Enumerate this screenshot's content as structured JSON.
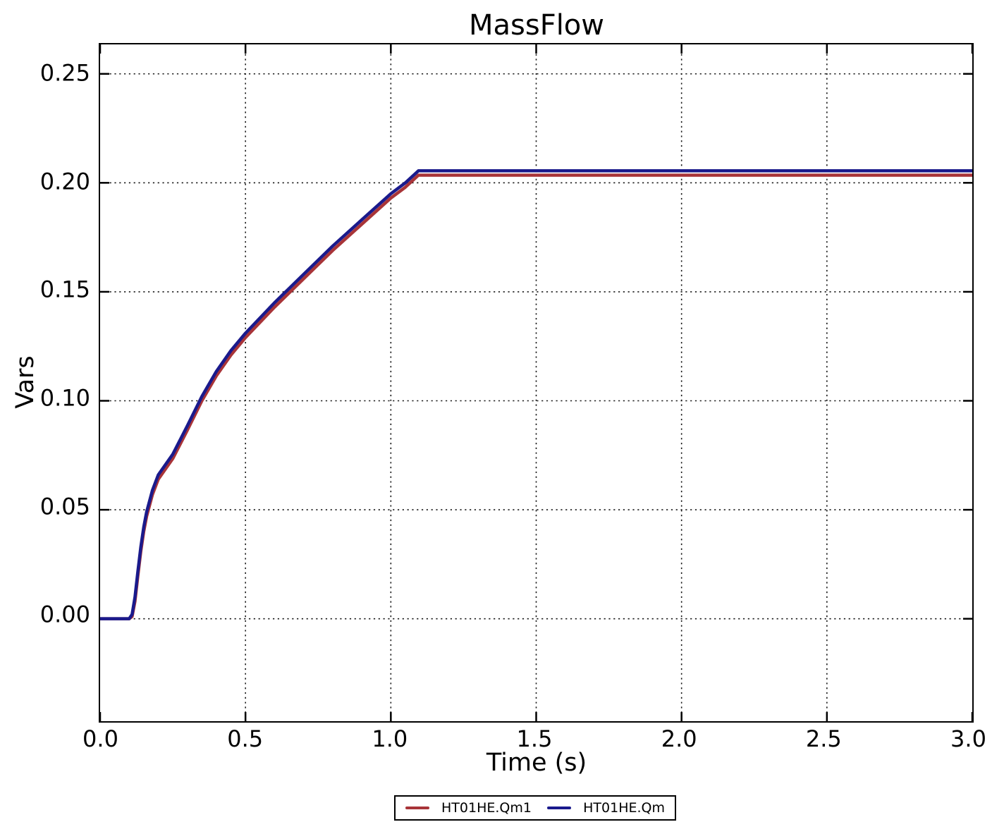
{
  "chart_data": {
    "type": "line",
    "title": "MassFlow",
    "xlabel": "Time (s)",
    "ylabel": "Vars",
    "xlim": [
      0.0,
      3.0
    ],
    "ylim": [
      -0.047,
      0.2635
    ],
    "grid": true,
    "grid_style": "dotted",
    "grid_color": "#1a1a1a",
    "frame_color": "#000000",
    "legend_position": "bottom-center-outside",
    "x_ticks": [
      0.0,
      0.5,
      1.0,
      1.5,
      2.0,
      2.5,
      3.0
    ],
    "x_tick_labels": [
      "0.0",
      "0.5",
      "1.0",
      "1.5",
      "2.0",
      "2.5",
      "3.0"
    ],
    "y_ticks": [
      0.0,
      0.05,
      0.1,
      0.15,
      0.2,
      0.25
    ],
    "y_tick_labels": [
      "0.00",
      "0.05",
      "0.10",
      "0.15",
      "0.20",
      "0.25"
    ],
    "x": [
      0.0,
      0.1,
      0.11,
      0.12,
      0.13,
      0.14,
      0.15,
      0.16,
      0.18,
      0.2,
      0.25,
      0.3,
      0.35,
      0.4,
      0.45,
      0.5,
      0.6,
      0.7,
      0.8,
      0.9,
      1.0,
      1.05,
      1.095,
      1.2,
      1.5,
      2.0,
      2.5,
      3.0
    ],
    "series": [
      {
        "name": "HT01HE.Qm1",
        "color": "#a83438",
        "values": [
          0.0,
          0.0,
          0.001,
          0.008,
          0.02,
          0.031,
          0.04,
          0.047,
          0.057,
          0.064,
          0.0735,
          0.0865,
          0.1,
          0.1115,
          0.121,
          0.129,
          0.143,
          0.156,
          0.169,
          0.181,
          0.193,
          0.198,
          0.2035,
          0.2035,
          0.2035,
          0.2035,
          0.2035,
          0.2035
        ]
      },
      {
        "name": "HT01HE.Qm",
        "color": "#1a1a8c",
        "values": [
          0.0,
          0.0,
          0.002,
          0.01,
          0.022,
          0.033,
          0.042,
          0.049,
          0.059,
          0.066,
          0.0755,
          0.0885,
          0.102,
          0.1135,
          0.123,
          0.131,
          0.145,
          0.158,
          0.171,
          0.183,
          0.195,
          0.2,
          0.2055,
          0.2055,
          0.2055,
          0.2055,
          0.2055,
          0.2055
        ]
      }
    ]
  }
}
